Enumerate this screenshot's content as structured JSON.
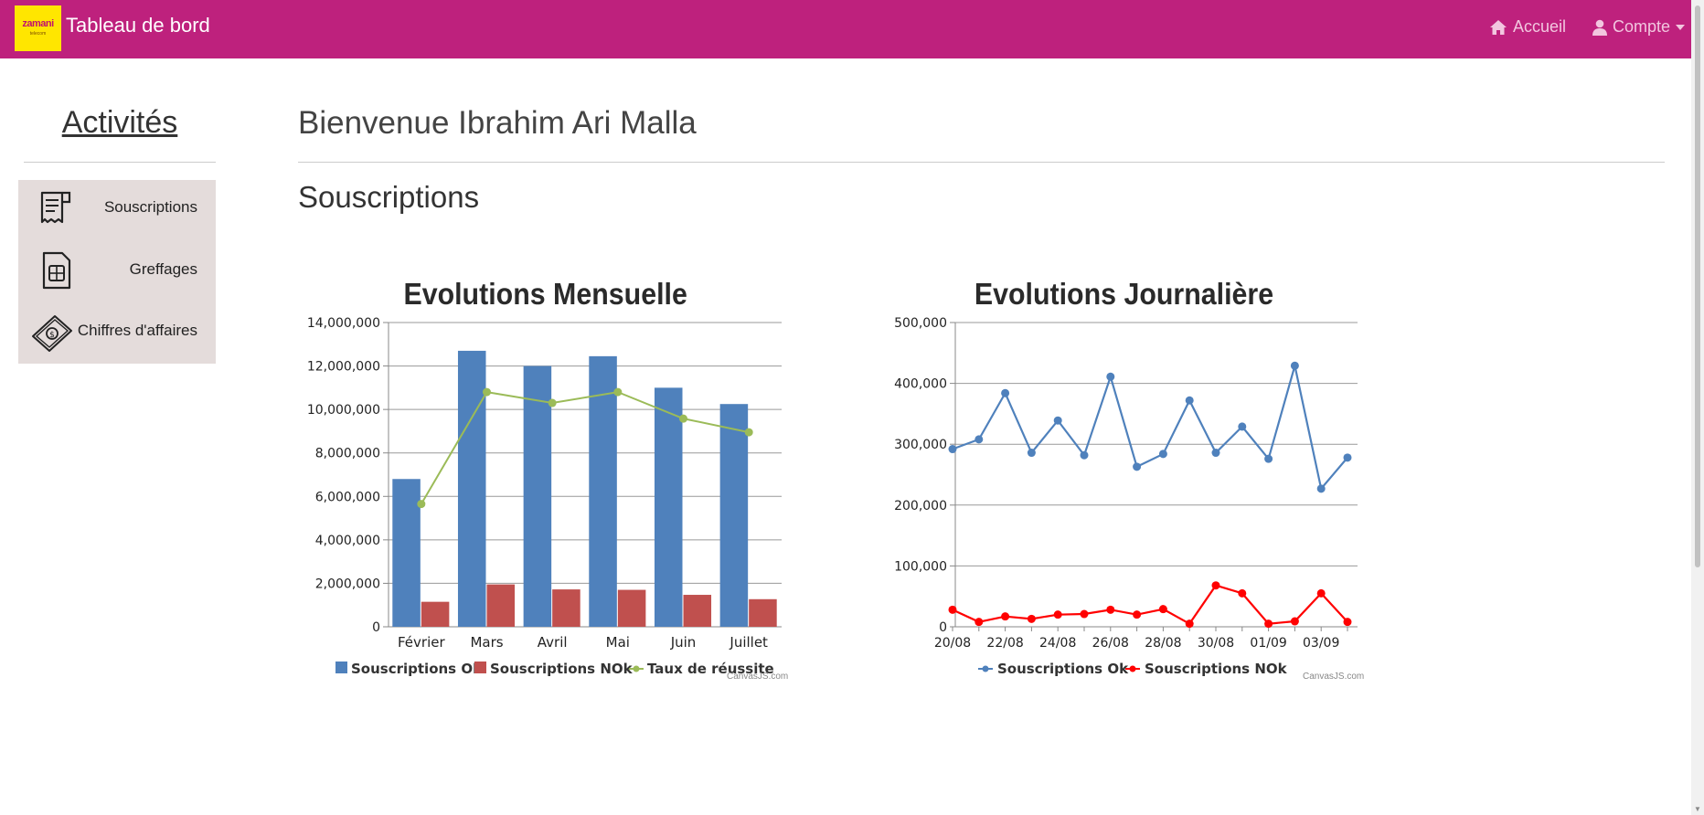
{
  "navbar": {
    "logo_text": "zamani",
    "logo_sub": "telecom",
    "brand": "Tableau de bord",
    "home_label": "Accueil",
    "account_label": "Compte",
    "color": "#be217d"
  },
  "sidebar": {
    "title": "Activités",
    "items": [
      {
        "label": "Souscriptions",
        "icon": "receipt-icon"
      },
      {
        "label": "Greffages",
        "icon": "sim-card-icon"
      },
      {
        "label": "Chiffres d'affaires",
        "icon": "money-icon"
      }
    ]
  },
  "main": {
    "welcome": "Bienvenue Ibrahim Ari Malla",
    "section_title": "Souscriptions"
  },
  "credits": {
    "monthly": "CanvasJS.com",
    "daily": "CanvasJS.com"
  },
  "chart_data": [
    {
      "type": "bar",
      "title": "Evolutions Mensuelle",
      "categories": [
        "Février",
        "Mars",
        "Avril",
        "Mai",
        "Juin",
        "Juillet"
      ],
      "ylim": [
        0,
        14000000
      ],
      "yticks": [
        "0",
        "2,000,000",
        "4,000,000",
        "6,000,000",
        "8,000,000",
        "10,000,000",
        "12,000,000",
        "14,000,000"
      ],
      "grid": true,
      "legend": "bottom",
      "series": [
        {
          "name": "Souscriptions Ok",
          "type": "bar",
          "color": "#4f81bc",
          "values": [
            6800000,
            12700000,
            12000000,
            12450000,
            11000000,
            10250000
          ]
        },
        {
          "name": "Souscriptions NOk",
          "type": "bar",
          "color": "#c0504e",
          "values": [
            1150000,
            1950000,
            1720000,
            1700000,
            1470000,
            1270000
          ]
        },
        {
          "name": "Taux de réussite",
          "type": "line",
          "color": "#9bbb58",
          "values": [
            5650000,
            10800000,
            10300000,
            10800000,
            9580000,
            8950000
          ]
        }
      ]
    },
    {
      "type": "line",
      "title": "Evolutions Journalière",
      "x": [
        "20/08",
        "21/08",
        "22/08",
        "23/08",
        "24/08",
        "25/08",
        "26/08",
        "27/08",
        "28/08",
        "29/08",
        "30/08",
        "31/08",
        "01/09",
        "02/09",
        "03/09",
        "04/09"
      ],
      "xticks": [
        "20/08",
        "22/08",
        "24/08",
        "26/08",
        "28/08",
        "30/08",
        "01/09",
        "03/09"
      ],
      "ylim": [
        0,
        500000
      ],
      "yticks": [
        "0",
        "100,000",
        "200,000",
        "300,000",
        "400,000",
        "500,000"
      ],
      "grid": true,
      "legend": "bottom",
      "series": [
        {
          "name": "Souscriptions Ok",
          "color": "#4f81bc",
          "values": [
            292000,
            308000,
            384000,
            286000,
            339000,
            282000,
            411000,
            263000,
            284000,
            372000,
            286000,
            329000,
            276000,
            429000,
            227000,
            278000
          ]
        },
        {
          "name": "Souscriptions NOk",
          "color": "#ff0000",
          "values": [
            28000,
            8000,
            17000,
            13000,
            20000,
            21000,
            28000,
            20000,
            29000,
            5000,
            68000,
            55000,
            5000,
            9000,
            55000,
            8000
          ]
        }
      ]
    }
  ]
}
